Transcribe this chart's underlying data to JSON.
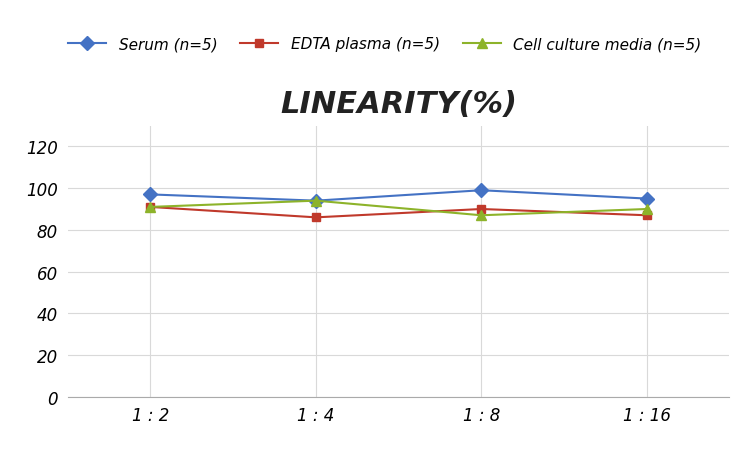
{
  "title": "LINEARITY(%)",
  "x_labels": [
    "1 : 2",
    "1 : 4",
    "1 : 8",
    "1 : 16"
  ],
  "x_positions": [
    0,
    1,
    2,
    3
  ],
  "series": [
    {
      "label": "Serum (n=5)",
      "values": [
        97,
        94,
        99,
        95
      ],
      "color": "#4472C4",
      "marker": "D",
      "markersize": 7,
      "linewidth": 1.5
    },
    {
      "label": "EDTA plasma (n=5)",
      "values": [
        91,
        86,
        90,
        87
      ],
      "color": "#C0392B",
      "marker": "s",
      "markersize": 6,
      "linewidth": 1.5
    },
    {
      "label": "Cell culture media (n=5)",
      "values": [
        91,
        94,
        87,
        90
      ],
      "color": "#8DB32A",
      "marker": "^",
      "markersize": 7,
      "linewidth": 1.5
    }
  ],
  "ylim": [
    0,
    130
  ],
  "yticks": [
    0,
    20,
    40,
    60,
    80,
    100,
    120
  ],
  "grid_color": "#D9D9D9",
  "background_color": "#FFFFFF",
  "title_fontsize": 22,
  "legend_fontsize": 11,
  "tick_fontsize": 12
}
